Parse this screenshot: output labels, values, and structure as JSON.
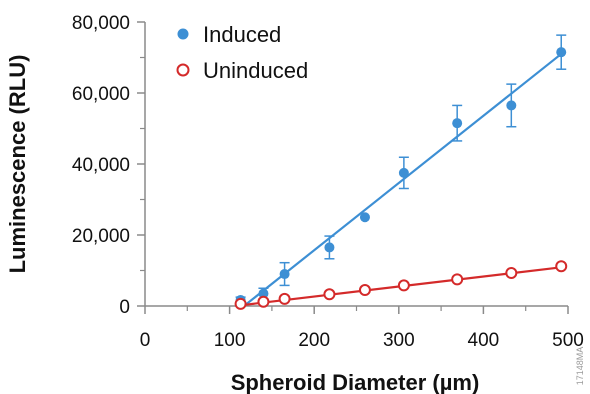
{
  "chart_data": {
    "type": "scatter",
    "xlabel": "Spheroid Diameter (µm)",
    "ylabel": "Luminescence (RLU)",
    "xlim": [
      0,
      500
    ],
    "ylim": [
      0,
      80000
    ],
    "x_ticks": [
      0,
      100,
      200,
      300,
      400,
      500
    ],
    "x_tick_labels": [
      "0",
      "100",
      "200",
      "300",
      "400",
      "500"
    ],
    "y_ticks": [
      0,
      20000,
      40000,
      60000,
      80000
    ],
    "y_tick_labels": [
      "0",
      "20,000",
      "40,000",
      "60,000",
      "80,000"
    ],
    "grid": false,
    "legend_position": "top-left",
    "series": [
      {
        "name": "Induced",
        "color": "#3d8fd4",
        "marker": "filled-circle",
        "points": [
          {
            "x": 113,
            "y": 1700,
            "err": 800
          },
          {
            "x": 140,
            "y": 3500,
            "err": 1500
          },
          {
            "x": 165,
            "y": 9000,
            "err": 3200
          },
          {
            "x": 218,
            "y": 16500,
            "err": 3200
          },
          {
            "x": 260,
            "y": 25000,
            "err": 0
          },
          {
            "x": 306,
            "y": 37500,
            "err": 4400
          },
          {
            "x": 369,
            "y": 51500,
            "err": 5000
          },
          {
            "x": 433,
            "y": 56500,
            "err": 6000
          },
          {
            "x": 492,
            "y": 71500,
            "err": 4800
          }
        ],
        "fit": {
          "x": [
            117,
            492
          ],
          "y": [
            0,
            71000
          ]
        }
      },
      {
        "name": "Uninduced",
        "color": "#d42a2a",
        "marker": "open-circle",
        "points": [
          {
            "x": 113,
            "y": 600,
            "err": 0
          },
          {
            "x": 140,
            "y": 1200,
            "err": 0
          },
          {
            "x": 165,
            "y": 2000,
            "err": 0
          },
          {
            "x": 218,
            "y": 3300,
            "err": 0
          },
          {
            "x": 260,
            "y": 4500,
            "err": 0
          },
          {
            "x": 306,
            "y": 5800,
            "err": 0
          },
          {
            "x": 369,
            "y": 7500,
            "err": 0
          },
          {
            "x": 433,
            "y": 9300,
            "err": 0
          },
          {
            "x": 492,
            "y": 11200,
            "err": 0
          }
        ],
        "fit": {
          "x": [
            113,
            492
          ],
          "y": [
            200,
            10900
          ]
        }
      }
    ]
  },
  "figure_code": "17148MA"
}
